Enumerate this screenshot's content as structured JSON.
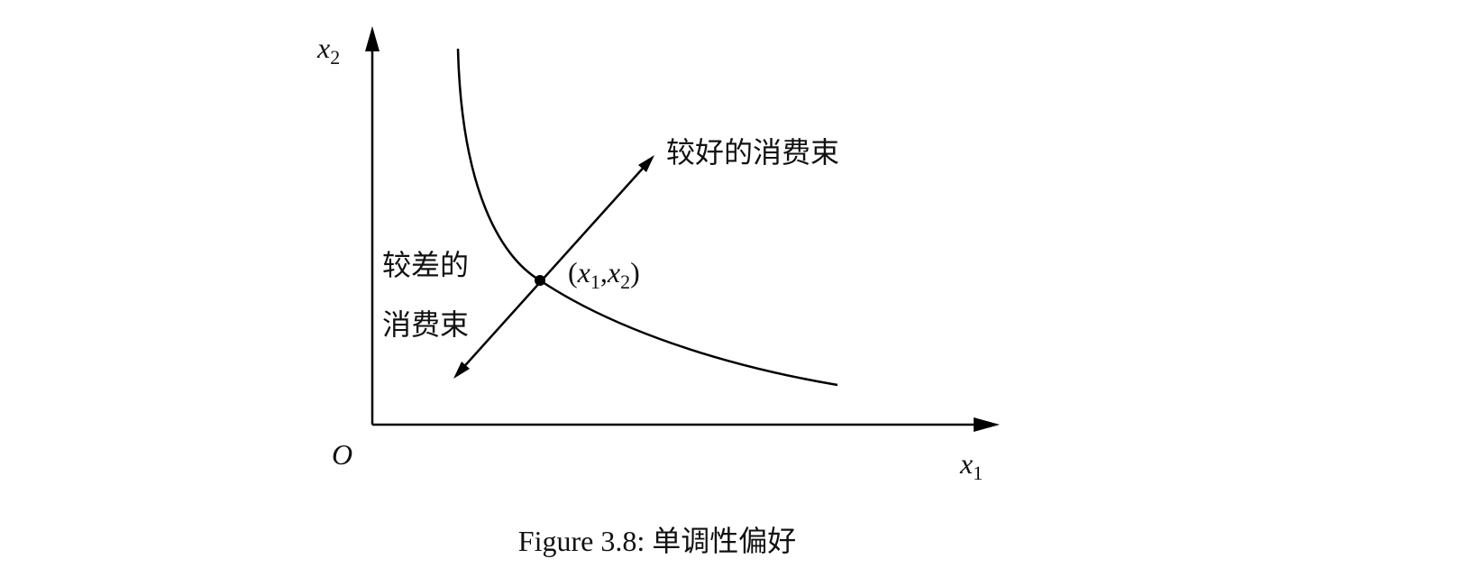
{
  "axes": {
    "x_label": {
      "var": "x",
      "sub": "1"
    },
    "y_label": {
      "var": "x",
      "sub": "2"
    },
    "origin": "O"
  },
  "point_label": {
    "open": "(",
    "first": {
      "var": "x",
      "sub": "1"
    },
    "sep": ",",
    "second": {
      "var": "x",
      "sub": "2"
    },
    "close": ")"
  },
  "better_label": "较好的消费束",
  "worse_label": [
    "较差的",
    "消费束"
  ],
  "caption": "Figure 3.8: 单调性偏好"
}
